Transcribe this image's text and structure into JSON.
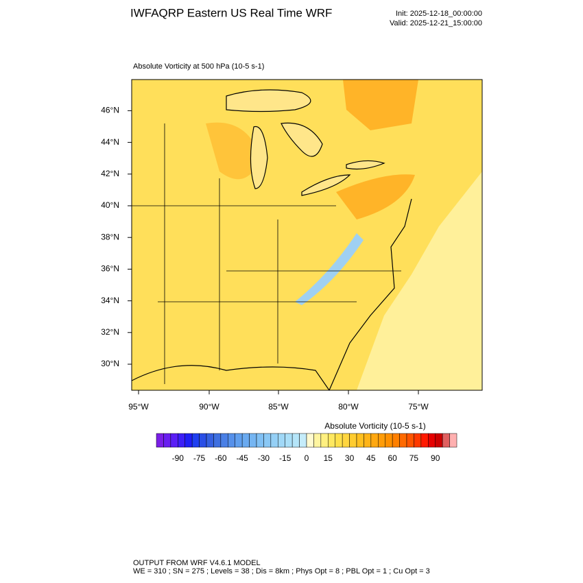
{
  "header": {
    "title": "IWFAQRP Eastern US Real Time WRF",
    "init": "Init: 2025-12-18_00:00:00",
    "valid": "Valid: 2025-12-21_15:00:00"
  },
  "map": {
    "subtitle": "Absolute Vorticity at 500 hPa   (10-5 s-1)",
    "lat_labels": [
      "30°N",
      "32°N",
      "34°N",
      "36°N",
      "38°N",
      "40°N",
      "42°N",
      "44°N",
      "46°N"
    ],
    "lon_labels": [
      "95°W",
      "90°W",
      "85°W",
      "80°W",
      "75°W"
    ]
  },
  "colorbar": {
    "title": "Absolute Vorticity  (10-5 s-1)",
    "range": [
      -105,
      105
    ],
    "ticks": [
      -90,
      -75,
      -60,
      -45,
      -30,
      -15,
      0,
      15,
      30,
      45,
      60,
      75,
      90
    ],
    "colors": [
      "#7a1fe6",
      "#6a1ff0",
      "#5a1ff5",
      "#3c1ff7",
      "#1f1ff5",
      "#1f3ff0",
      "#2a4fe6",
      "#3560e0",
      "#3f70e0",
      "#4a80e6",
      "#5590ea",
      "#609fee",
      "#6aaaf0",
      "#75b5f2",
      "#80c0f4",
      "#8ac8f5",
      "#95d0f6",
      "#a0d8f7",
      "#aadff8",
      "#b5e5f9",
      "#c5ecfa",
      "#fffad0",
      "#fff5a0",
      "#fff080",
      "#ffe860",
      "#ffe04a",
      "#ffd640",
      "#ffcc30",
      "#ffc020",
      "#ffb418",
      "#ffa810",
      "#ff9c08",
      "#ff9000",
      "#ff8000",
      "#ff6a00",
      "#ff5500",
      "#ff3a00",
      "#ff1a00",
      "#e60000",
      "#cc0000",
      "#e06060",
      "#ffb0b0"
    ]
  },
  "footer": {
    "line1": "OUTPUT FROM WRF V4.6.1 MODEL",
    "line2": "WE = 310 ; SN = 275 ; Levels = 38 ; Dis = 8km ; Phys Opt = 8 ; PBL Opt = 1 ; Cu Opt = 3"
  }
}
